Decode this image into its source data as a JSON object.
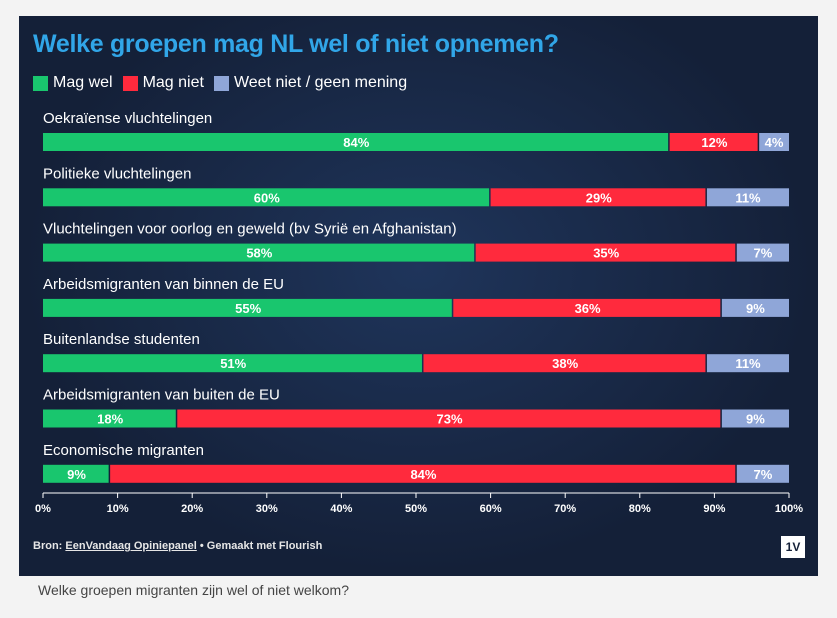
{
  "caption": "Welke groepen migranten zijn wel of niet welkom?",
  "footer": {
    "prefix": "Bron: ",
    "source_link": "EenVandaag Opiniepanel",
    "suffix": " • Gemaakt met Flourish"
  },
  "logo_text": "1V",
  "colors": {
    "background": "#142038",
    "title": "#31a6e8",
    "mag_wel": "#19c66e",
    "mag_niet": "#ff2a3d",
    "weet_niet": "#8fa6d8"
  },
  "chart_data": {
    "type": "bar",
    "orientation": "horizontal",
    "stacked": true,
    "title": "Welke groepen mag NL wel of niet opnemen?",
    "categories": [
      "Oekraïense vluchtelingen",
      "Politieke vluchtelingen",
      "Vluchtelingen voor oorlog en geweld (bv Syrië en Afghanistan)",
      "Arbeidsmigranten van binnen de EU",
      "Buitenlandse studenten",
      "Arbeidsmigranten van buiten de EU",
      "Economische migranten"
    ],
    "series": [
      {
        "name": "Mag wel",
        "color": "#19c66e",
        "values": [
          84,
          60,
          58,
          55,
          51,
          18,
          9
        ]
      },
      {
        "name": "Mag niet",
        "color": "#ff2a3d",
        "values": [
          12,
          29,
          35,
          36,
          38,
          73,
          84
        ]
      },
      {
        "name": "Weet niet / geen mening",
        "color": "#8fa6d8",
        "values": [
          4,
          11,
          7,
          9,
          11,
          9,
          7
        ]
      }
    ],
    "value_labels": [
      [
        "84%",
        "12%",
        "4%"
      ],
      [
        "60%",
        "29%",
        "11%"
      ],
      [
        "58%",
        "35%",
        "7%"
      ],
      [
        "55%",
        "36%",
        "9%"
      ],
      [
        "51%",
        "38%",
        "11%"
      ],
      [
        "18%",
        "73%",
        "9%"
      ],
      [
        "9%",
        "84%",
        "7%"
      ]
    ],
    "xlim": [
      0,
      100
    ],
    "xticks": [
      "0%",
      "10%",
      "20%",
      "30%",
      "40%",
      "50%",
      "60%",
      "70%",
      "80%",
      "90%",
      "100%"
    ],
    "legend_position": "top-left",
    "grid": false
  }
}
